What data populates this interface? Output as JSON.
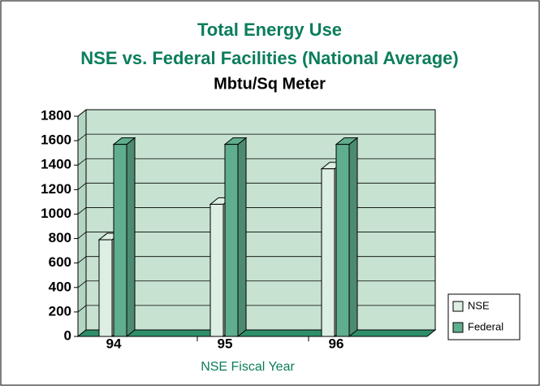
{
  "chart_data": {
    "type": "bar3d",
    "title": "Total Energy Use",
    "subtitle": "NSE vs. Federal Facilities (National Average)",
    "unit_label": "Mbtu/Sq Meter",
    "x_label": "NSE Fiscal Year",
    "categories": [
      "94",
      "95",
      "96"
    ],
    "series": [
      {
        "name": "NSE",
        "color": "#dcefe2",
        "values": [
          790,
          1080,
          1370
        ]
      },
      {
        "name": "Federal",
        "color": "#5fae8e",
        "values": [
          1570,
          1570,
          1570
        ]
      }
    ],
    "ylim": [
      0,
      1800
    ],
    "yticks": [
      0,
      200,
      400,
      600,
      800,
      1000,
      1200,
      1400,
      1600,
      1800
    ],
    "grid": true,
    "legend": "right"
  }
}
